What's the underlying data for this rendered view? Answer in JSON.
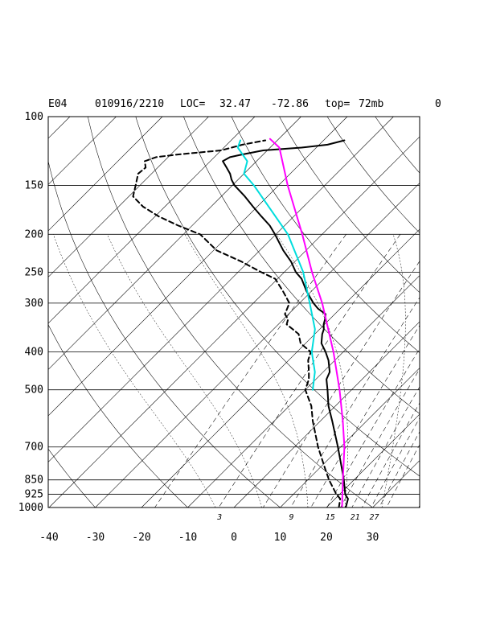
{
  "header": {
    "station": "E04",
    "datetime": "010916/2210",
    "loc_label": "LOC=",
    "lat": "32.47",
    "lon": "-72.86",
    "top_label": "top=",
    "top_value": "72mb",
    "extra": "0"
  },
  "chart_data": {
    "type": "line",
    "title": "",
    "xlabel": "",
    "ylabel": "",
    "yscale": "log",
    "y_inverted": true,
    "ylim": [
      100,
      1000
    ],
    "xlim": [
      -40,
      40
    ],
    "skew_degrees": 45,
    "pressure_ticks": [
      100,
      150,
      200,
      250,
      300,
      400,
      500,
      700,
      850,
      925,
      1000
    ],
    "temperature_ticks": [
      -40,
      -30,
      -20,
      -10,
      0,
      10,
      20,
      30
    ],
    "mixing_ratio_labels": [
      "3",
      "9",
      "15",
      "21",
      "27"
    ],
    "series": [
      {
        "name": "",
        "style": "solid",
        "color": "#000000",
        "points": [
          [
            1000,
            24.2
          ],
          [
            950,
            22.8
          ],
          [
            925,
            21.2
          ],
          [
            850,
            17.8
          ],
          [
            800,
            15.2
          ],
          [
            700,
            9.4
          ],
          [
            600,
            2.5
          ],
          [
            550,
            -1.5
          ],
          [
            500,
            -5.2
          ],
          [
            470,
            -7.7
          ],
          [
            450,
            -8.6
          ],
          [
            420,
            -11.4
          ],
          [
            400,
            -13.8
          ],
          [
            380,
            -16.6
          ],
          [
            360,
            -18.4
          ],
          [
            350,
            -19.1
          ],
          [
            340,
            -20.2
          ],
          [
            330,
            -21.0
          ],
          [
            320,
            -22.0
          ],
          [
            310,
            -24.8
          ],
          [
            300,
            -27.0
          ],
          [
            280,
            -31.0
          ],
          [
            260,
            -34.8
          ],
          [
            250,
            -37.5
          ],
          [
            235,
            -40.8
          ],
          [
            220,
            -44.9
          ],
          [
            200,
            -50.2
          ],
          [
            190,
            -53.2
          ],
          [
            180,
            -57.0
          ],
          [
            170,
            -60.9
          ],
          [
            160,
            -64.9
          ],
          [
            150,
            -69.5
          ],
          [
            145,
            -71.4
          ],
          [
            140,
            -73.0
          ],
          [
            135,
            -75.1
          ],
          [
            130,
            -77.3
          ],
          [
            127,
            -76.6
          ],
          [
            125,
            -74.6
          ],
          [
            122,
            -70.9
          ],
          [
            120,
            -63.2
          ],
          [
            118,
            -58.2
          ],
          [
            115,
            -55.5
          ]
        ]
      },
      {
        "name": "",
        "style": "dashed",
        "color": "#000000",
        "points": [
          [
            1000,
            22.7
          ],
          [
            950,
            21.1
          ],
          [
            925,
            19.3
          ],
          [
            850,
            14.6
          ],
          [
            800,
            11.6
          ],
          [
            700,
            5.1
          ],
          [
            600,
            -1.7
          ],
          [
            550,
            -5.2
          ],
          [
            500,
            -10.0
          ],
          [
            470,
            -11.5
          ],
          [
            450,
            -13.1
          ],
          [
            420,
            -15.8
          ],
          [
            400,
            -17.0
          ],
          [
            380,
            -21.1
          ],
          [
            360,
            -23.5
          ],
          [
            350,
            -25.8
          ],
          [
            340,
            -28.2
          ],
          [
            330,
            -29.0
          ],
          [
            320,
            -30.8
          ],
          [
            300,
            -32.2
          ],
          [
            280,
            -36.1
          ],
          [
            260,
            -40.5
          ],
          [
            250,
            -45.0
          ],
          [
            235,
            -51.5
          ],
          [
            220,
            -59.3
          ],
          [
            200,
            -66.4
          ],
          [
            190,
            -73.0
          ],
          [
            180,
            -79.2
          ],
          [
            170,
            -84.7
          ],
          [
            160,
            -89.1
          ],
          [
            150,
            -90.9
          ],
          [
            140,
            -92.9
          ],
          [
            135,
            -92.6
          ],
          [
            130,
            -94.2
          ],
          [
            127,
            -92.6
          ],
          [
            125,
            -88.5
          ],
          [
            122,
            -80.0
          ],
          [
            118,
            -76.6
          ],
          [
            115,
            -72.6
          ]
        ]
      },
      {
        "name": "",
        "style": "solid",
        "color": "#ff00ff",
        "points": [
          [
            1000,
            23.4
          ],
          [
            925,
            20.6
          ],
          [
            850,
            17.6
          ],
          [
            700,
            10.8
          ],
          [
            600,
            4.8
          ],
          [
            500,
            -2.6
          ],
          [
            400,
            -12.1
          ],
          [
            300,
            -25.1
          ],
          [
            250,
            -34.0
          ],
          [
            200,
            -44.3
          ],
          [
            150,
            -58.0
          ],
          [
            120,
            -68.0
          ],
          [
            114,
            -71.9
          ]
        ]
      },
      {
        "name": "",
        "style": "solid",
        "color": "#00dddd",
        "points": [
          [
            500,
            -8.4
          ],
          [
            450,
            -11.8
          ],
          [
            400,
            -16.8
          ],
          [
            350,
            -21.0
          ],
          [
            300,
            -27.8
          ],
          [
            250,
            -35.9
          ],
          [
            200,
            -47.4
          ],
          [
            150,
            -65.3
          ],
          [
            140,
            -70.0
          ],
          [
            130,
            -72.0
          ],
          [
            120,
            -77.0
          ],
          [
            115,
            -78.0
          ]
        ]
      }
    ]
  }
}
